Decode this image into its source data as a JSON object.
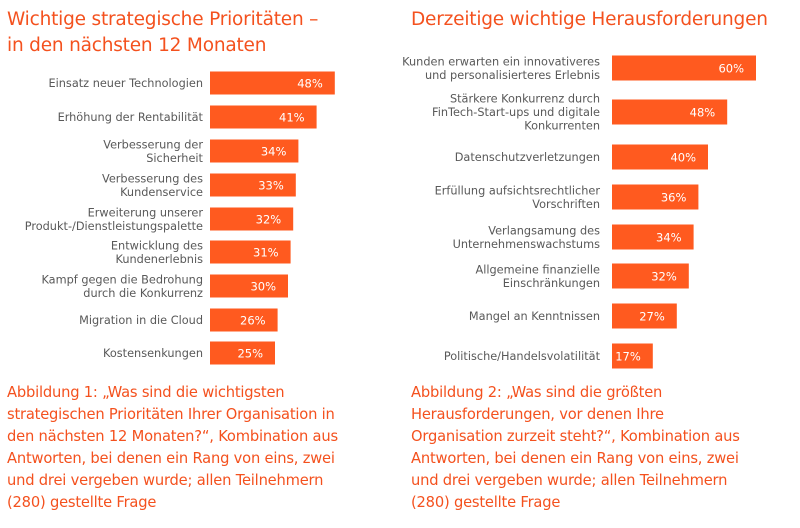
{
  "colors": {
    "accent": "#ff5a1f",
    "label_text": "#595959",
    "value_text": "#ffffff"
  },
  "chart_data": [
    {
      "type": "bar",
      "orientation": "horizontal",
      "title_lines": [
        "Wichtige strategische Prioritäten –",
        "in den nächsten 12 Monaten"
      ],
      "categories": [
        [
          "Einsatz neuer Technologien"
        ],
        [
          "Erhöhung der Rentabilität"
        ],
        [
          "Verbesserung der",
          "Sicherheit"
        ],
        [
          "Verbesserung des",
          "Kundenservice"
        ],
        [
          "Erweiterung unserer",
          "Produkt-/Dienstleistungspalette"
        ],
        [
          "Entwicklung des",
          "Kundenerlebnis"
        ],
        [
          "Kampf gegen die Bedrohung",
          "durch die Konkurrenz"
        ],
        [
          "Migration in die Cloud"
        ],
        [
          "Kostensenkungen"
        ]
      ],
      "values": [
        48,
        41,
        34,
        33,
        32,
        31,
        30,
        26,
        25
      ],
      "value_labels": [
        "48%",
        "41%",
        "34%",
        "33%",
        "32%",
        "31%",
        "30%",
        "26%",
        "25%"
      ],
      "unit": "%",
      "grid": false,
      "legend": "none",
      "caption_lines": [
        "Abbildung 1: „Was sind die wichtigsten",
        "strategischen Prioritäten Ihrer Organisation in",
        "den nächsten 12 Monaten?“, Kombination aus",
        "Antworten, bei denen ein Rang von eins, zwei",
        "und drei vergeben wurde; allen Teilnehmern",
        "(280) gestellte Frage"
      ]
    },
    {
      "type": "bar",
      "orientation": "horizontal",
      "title_lines": [
        "Derzeitige wichtige Herausforderungen"
      ],
      "categories": [
        [
          "Kunden erwarten ein innovativeres",
          "und personalisierteres Erlebnis"
        ],
        [
          "Stärkere Konkurrenz durch",
          "FinTech-Start-ups und digitale",
          "Konkurrenten"
        ],
        [
          "Datenschutzverletzungen"
        ],
        [
          "Erfüllung aufsichtsrechtlicher",
          "Vorschriften"
        ],
        [
          "Verlangsamung des",
          "Unternehmenswachstums"
        ],
        [
          "Allgemeine finanzielle",
          "Einschränkungen"
        ],
        [
          "Mangel an Kenntnissen"
        ],
        [
          "Politische/Handelsvolatilität"
        ]
      ],
      "values": [
        60,
        48,
        40,
        36,
        34,
        32,
        27,
        17
      ],
      "value_labels": [
        "60%",
        "48%",
        "40%",
        "36%",
        "34%",
        "32%",
        "27%",
        "17%"
      ],
      "unit": "%",
      "grid": false,
      "legend": "none",
      "caption_lines": [
        "Abbildung 2: „Was sind die größten",
        "Herausforderungen, vor denen Ihre",
        "Organisation zurzeit steht?“, Kombination aus",
        "Antworten, bei denen ein Rang von eins, zwei",
        "und drei vergeben wurde; allen Teilnehmern",
        "(280) gestellte Frage"
      ]
    }
  ]
}
